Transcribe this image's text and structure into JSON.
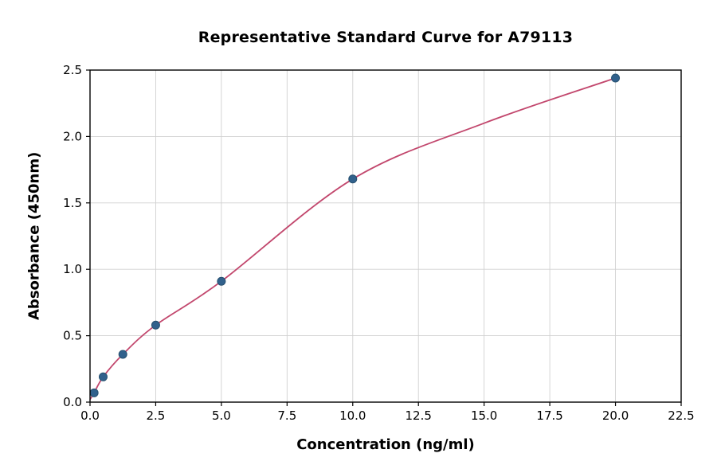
{
  "chart_data": {
    "type": "scatter",
    "title": "Representative Standard Curve for A79113",
    "xlabel": "Concentration (ng/ml)",
    "ylabel": "Absorbance (450nm)",
    "xlim": [
      0,
      22.5
    ],
    "ylim": [
      0,
      2.5
    ],
    "x_ticks": [
      0,
      2.5,
      5,
      7.5,
      10,
      12.5,
      15,
      17.5,
      20,
      22.5
    ],
    "x_tick_labels": [
      "0.0",
      "2.5",
      "5.0",
      "7.5",
      "10.0",
      "12.5",
      "15.0",
      "17.5",
      "20.0",
      "22.5"
    ],
    "y_ticks": [
      0,
      0.5,
      1,
      1.5,
      2,
      2.5
    ],
    "y_tick_labels": [
      "0.0",
      "0.5",
      "1.0",
      "1.5",
      "2.0",
      "2.5"
    ],
    "grid": true,
    "legend_position": "none",
    "points": [
      [
        0.156,
        0.07
      ],
      [
        0.5,
        0.19
      ],
      [
        1.25,
        0.36
      ],
      [
        2.5,
        0.58
      ],
      [
        5,
        0.91
      ],
      [
        10,
        1.68
      ],
      [
        20,
        2.44
      ]
    ],
    "curve_points": [
      [
        0,
        0.02
      ],
      [
        0.156,
        0.07
      ],
      [
        0.5,
        0.19
      ],
      [
        1.25,
        0.36
      ],
      [
        2.5,
        0.58
      ],
      [
        5,
        0.91
      ],
      [
        10,
        1.68
      ],
      [
        15,
        2.1
      ],
      [
        20,
        2.44
      ]
    ],
    "point_color": "#31618c",
    "point_edge_color": "#27506f",
    "line_color": "#c2476d",
    "grid_color": "#d0d0d0",
    "axis_color": "#000000",
    "background_color": "#ffffff"
  }
}
